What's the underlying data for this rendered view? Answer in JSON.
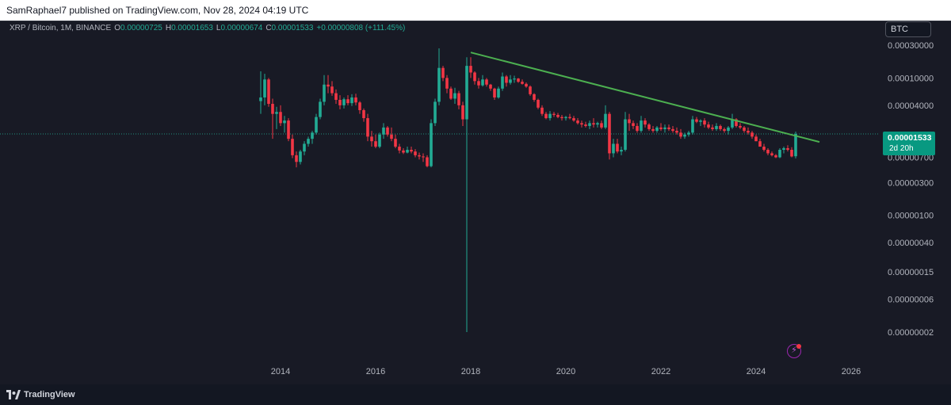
{
  "header": {
    "publish_text": "SamRaphael7 published on TradingView.com, Nov 28, 2024 04:19 UTC"
  },
  "legend": {
    "symbol": "XRP / Bitcoin, 1M, BINANCE",
    "open_label": "O",
    "open": "0.00000725",
    "high_label": "H",
    "high": "0.00001653",
    "low_label": "L",
    "low": "0.00000674",
    "close_label": "C",
    "close": "0.00001533",
    "change": "+0.00000808 (+111.45%)"
  },
  "currency_button": "BTC",
  "last_price": {
    "value": "0.00001533",
    "countdown": "2d 20h"
  },
  "footer": {
    "brand": "TradingView"
  },
  "colors": {
    "up": "#22ab94",
    "down": "#f23645",
    "trendline": "#4caf50",
    "background": "#181a25",
    "axis_text": "#b2b5be"
  },
  "icons": [
    "tradingview-logo-icon",
    "flash-icon"
  ],
  "chart_data": {
    "type": "candlestick",
    "interval": "1M",
    "y_scale": "log",
    "ylim": [
      1.5e-08,
      0.00035
    ],
    "xlim": [
      "2012-10-01",
      "2026-10-01"
    ],
    "y_ticks": [
      "0.00030000",
      "0.00010000",
      "0.00004000",
      "0.00001533",
      "0.00000700",
      "0.00000300",
      "0.00000100",
      "0.00000040",
      "0.00000015",
      "0.00000006",
      "0.00000002"
    ],
    "y_tick_values": [
      0.0003,
      0.0001,
      4e-05,
      1.533e-05,
      7e-06,
      3e-06,
      1e-06,
      4e-07,
      1.5e-07,
      6e-08,
      2e-08
    ],
    "x_ticks": [
      "2014",
      "2016",
      "2018",
      "2020",
      "2022",
      "2024",
      "2026"
    ],
    "grid": false,
    "current_price_line": 1.533e-05,
    "trendline": [
      {
        "date": "2018-01-01",
        "value": 0.000235
      },
      {
        "date": "2025-05-01",
        "value": 1.17e-05
      }
    ],
    "candles": [
      {
        "date": "2013-08",
        "o": 4.6e-05,
        "h": 0.000125,
        "l": 3e-05,
        "c": 5.2e-05
      },
      {
        "date": "2013-09",
        "o": 5.2e-05,
        "h": 0.000115,
        "l": 4e-05,
        "c": 9.5e-05
      },
      {
        "date": "2013-10",
        "o": 9.5e-05,
        "h": 0.0001,
        "l": 3.8e-05,
        "c": 4.2e-05
      },
      {
        "date": "2013-11",
        "o": 4.2e-05,
        "h": 5e-05,
        "l": 1.3e-05,
        "c": 3e-05
      },
      {
        "date": "2013-12",
        "o": 3e-05,
        "h": 3.8e-05,
        "l": 1.8e-05,
        "c": 3.2e-05
      },
      {
        "date": "2014-01",
        "o": 3.2e-05,
        "h": 4e-05,
        "l": 2e-05,
        "c": 2.2e-05
      },
      {
        "date": "2014-02",
        "o": 2.2e-05,
        "h": 2.8e-05,
        "l": 1.6e-05,
        "c": 2.4e-05
      },
      {
        "date": "2014-03",
        "o": 2.4e-05,
        "h": 2.6e-05,
        "l": 1.2e-05,
        "c": 1.3e-05
      },
      {
        "date": "2014-04",
        "o": 1.3e-05,
        "h": 1.5e-05,
        "l": 6.8e-06,
        "c": 7.5e-06
      },
      {
        "date": "2014-05",
        "o": 7.5e-06,
        "h": 8.5e-06,
        "l": 5e-06,
        "c": 6e-06
      },
      {
        "date": "2014-06",
        "o": 6e-06,
        "h": 9e-06,
        "l": 5.5e-06,
        "c": 8.5e-06
      },
      {
        "date": "2014-07",
        "o": 8.5e-06,
        "h": 1.2e-05,
        "l": 7.5e-06,
        "c": 1.1e-05
      },
      {
        "date": "2014-08",
        "o": 1.1e-05,
        "h": 1.4e-05,
        "l": 1e-05,
        "c": 1.3e-05
      },
      {
        "date": "2014-09",
        "o": 1.3e-05,
        "h": 1.7e-05,
        "l": 1.1e-05,
        "c": 1.6e-05
      },
      {
        "date": "2014-10",
        "o": 1.6e-05,
        "h": 3e-05,
        "l": 1.5e-05,
        "c": 2.7e-05
      },
      {
        "date": "2014-11",
        "o": 2.7e-05,
        "h": 5e-05,
        "l": 2.5e-05,
        "c": 4.5e-05
      },
      {
        "date": "2014-12",
        "o": 4.5e-05,
        "h": 0.00011,
        "l": 4e-05,
        "c": 8e-05
      },
      {
        "date": "2015-01",
        "o": 8e-05,
        "h": 0.00011,
        "l": 6e-05,
        "c": 7.5e-05
      },
      {
        "date": "2015-02",
        "o": 7.5e-05,
        "h": 9e-05,
        "l": 5.5e-05,
        "c": 6e-05
      },
      {
        "date": "2015-03",
        "o": 6e-05,
        "h": 6.8e-05,
        "l": 4.2e-05,
        "c": 4.8e-05
      },
      {
        "date": "2015-04",
        "o": 4.8e-05,
        "h": 5.6e-05,
        "l": 3.5e-05,
        "c": 4e-05
      },
      {
        "date": "2015-05",
        "o": 4e-05,
        "h": 5.2e-05,
        "l": 3.6e-05,
        "c": 4.9e-05
      },
      {
        "date": "2015-06",
        "o": 4.9e-05,
        "h": 5.6e-05,
        "l": 4e-05,
        "c": 4.3e-05
      },
      {
        "date": "2015-07",
        "o": 4.3e-05,
        "h": 5.8e-05,
        "l": 3.9e-05,
        "c": 5.2e-05
      },
      {
        "date": "2015-08",
        "o": 5.2e-05,
        "h": 5.9e-05,
        "l": 4e-05,
        "c": 4.4e-05
      },
      {
        "date": "2015-09",
        "o": 4.4e-05,
        "h": 4.6e-05,
        "l": 3e-05,
        "c": 3.4e-05
      },
      {
        "date": "2015-10",
        "o": 3.4e-05,
        "h": 3.6e-05,
        "l": 2.3e-05,
        "c": 2.6e-05
      },
      {
        "date": "2015-11",
        "o": 2.6e-05,
        "h": 3e-05,
        "l": 1.2e-05,
        "c": 1.4e-05
      },
      {
        "date": "2015-12",
        "o": 1.4e-05,
        "h": 1.7e-05,
        "l": 1e-05,
        "c": 1.2e-05
      },
      {
        "date": "2016-01",
        "o": 1.2e-05,
        "h": 1.5e-05,
        "l": 9.5e-06,
        "c": 1e-05
      },
      {
        "date": "2016-02",
        "o": 1e-05,
        "h": 1.6e-05,
        "l": 9.5e-06,
        "c": 1.5e-05
      },
      {
        "date": "2016-03",
        "o": 1.5e-05,
        "h": 2.2e-05,
        "l": 1.3e-05,
        "c": 1.9e-05
      },
      {
        "date": "2016-04",
        "o": 1.9e-05,
        "h": 2e-05,
        "l": 1.4e-05,
        "c": 1.5e-05
      },
      {
        "date": "2016-05",
        "o": 1.5e-05,
        "h": 1.9e-05,
        "l": 1.2e-05,
        "c": 1.3e-05
      },
      {
        "date": "2016-06",
        "o": 1.3e-05,
        "h": 1.5e-05,
        "l": 9.5e-06,
        "c": 1e-05
      },
      {
        "date": "2016-07",
        "o": 1e-05,
        "h": 1.1e-05,
        "l": 8e-06,
        "c": 8.8e-06
      },
      {
        "date": "2016-08",
        "o": 8.8e-06,
        "h": 9.5e-06,
        "l": 7.8e-06,
        "c": 8.2e-06
      },
      {
        "date": "2016-09",
        "o": 8.2e-06,
        "h": 1e-05,
        "l": 8e-06,
        "c": 9e-06
      },
      {
        "date": "2016-10",
        "o": 9e-06,
        "h": 1e-05,
        "l": 8e-06,
        "c": 8.5e-06
      },
      {
        "date": "2016-11",
        "o": 8.5e-06,
        "h": 9.2e-06,
        "l": 7e-06,
        "c": 7.5e-06
      },
      {
        "date": "2016-12",
        "o": 7.5e-06,
        "h": 8.2e-06,
        "l": 6.5e-06,
        "c": 7.2e-06
      },
      {
        "date": "2017-01",
        "o": 7.2e-06,
        "h": 8e-06,
        "l": 6e-06,
        "c": 7e-06
      },
      {
        "date": "2017-02",
        "o": 7e-06,
        "h": 7.5e-06,
        "l": 5e-06,
        "c": 5.2e-06
      },
      {
        "date": "2017-03",
        "o": 5.2e-06,
        "h": 2.5e-05,
        "l": 5e-06,
        "c": 2.2e-05
      },
      {
        "date": "2017-04",
        "o": 2.2e-05,
        "h": 5e-05,
        "l": 2e-05,
        "c": 4.5e-05
      },
      {
        "date": "2017-05",
        "o": 4.5e-05,
        "h": 0.00027,
        "l": 4e-05,
        "c": 0.00014
      },
      {
        "date": "2017-06",
        "o": 0.00014,
        "h": 0.00015,
        "l": 9e-05,
        "c": 0.0001
      },
      {
        "date": "2017-07",
        "o": 0.0001,
        "h": 0.00011,
        "l": 6e-05,
        "c": 7e-05
      },
      {
        "date": "2017-08",
        "o": 7e-05,
        "h": 7.5e-05,
        "l": 4.8e-05,
        "c": 5e-05
      },
      {
        "date": "2017-09",
        "o": 5e-05,
        "h": 7.2e-05,
        "l": 4.2e-05,
        "c": 6e-05
      },
      {
        "date": "2017-10",
        "o": 6e-05,
        "h": 6.5e-05,
        "l": 3.5e-05,
        "c": 4e-05
      },
      {
        "date": "2017-11",
        "o": 4e-05,
        "h": 4.5e-05,
        "l": 2e-05,
        "c": 2.5e-05
      },
      {
        "date": "2017-12",
        "o": 2.5e-05,
        "h": 0.0002,
        "l": 2e-08,
        "c": 0.00015
      },
      {
        "date": "2018-01",
        "o": 0.00015,
        "h": 0.0002,
        "l": 0.0001,
        "c": 0.00012
      },
      {
        "date": "2018-02",
        "o": 0.00012,
        "h": 0.000125,
        "l": 8e-05,
        "c": 9e-05
      },
      {
        "date": "2018-03",
        "o": 9e-05,
        "h": 0.0001,
        "l": 7e-05,
        "c": 7.8e-05
      },
      {
        "date": "2018-04",
        "o": 7.8e-05,
        "h": 0.00011,
        "l": 7.5e-05,
        "c": 9.5e-05
      },
      {
        "date": "2018-05",
        "o": 9.5e-05,
        "h": 0.0001,
        "l": 7.5e-05,
        "c": 8e-05
      },
      {
        "date": "2018-06",
        "o": 8e-05,
        "h": 8.2e-05,
        "l": 6.5e-05,
        "c": 7e-05
      },
      {
        "date": "2018-07",
        "o": 7e-05,
        "h": 7.2e-05,
        "l": 4.8e-05,
        "c": 5.2e-05
      },
      {
        "date": "2018-08",
        "o": 5.2e-05,
        "h": 7.5e-05,
        "l": 5e-05,
        "c": 7e-05
      },
      {
        "date": "2018-09",
        "o": 7e-05,
        "h": 0.00012,
        "l": 6.5e-05,
        "c": 0.000105
      },
      {
        "date": "2018-10",
        "o": 0.000105,
        "h": 0.00011,
        "l": 7.5e-05,
        "c": 8.5e-05
      },
      {
        "date": "2018-11",
        "o": 8.5e-05,
        "h": 0.00011,
        "l": 8e-05,
        "c": 9.5e-05
      },
      {
        "date": "2018-12",
        "o": 9.5e-05,
        "h": 0.000108,
        "l": 8.5e-05,
        "c": 9.8e-05
      },
      {
        "date": "2019-01",
        "o": 9.8e-05,
        "h": 0.0001,
        "l": 8.5e-05,
        "c": 8.8e-05
      },
      {
        "date": "2019-02",
        "o": 8.8e-05,
        "h": 9.5e-05,
        "l": 8e-05,
        "c": 8.2e-05
      },
      {
        "date": "2019-03",
        "o": 8.2e-05,
        "h": 8.6e-05,
        "l": 7.2e-05,
        "c": 7.5e-05
      },
      {
        "date": "2019-04",
        "o": 7.5e-05,
        "h": 7.8e-05,
        "l": 5.5e-05,
        "c": 5.8e-05
      },
      {
        "date": "2019-05",
        "o": 5.8e-05,
        "h": 6e-05,
        "l": 4.5e-05,
        "c": 4.8e-05
      },
      {
        "date": "2019-06",
        "o": 4.8e-05,
        "h": 5e-05,
        "l": 3.5e-05,
        "c": 3.7e-05
      },
      {
        "date": "2019-07",
        "o": 3.7e-05,
        "h": 4e-05,
        "l": 2.8e-05,
        "c": 3e-05
      },
      {
        "date": "2019-08",
        "o": 3e-05,
        "h": 3.2e-05,
        "l": 2.5e-05,
        "c": 2.6e-05
      },
      {
        "date": "2019-09",
        "o": 2.6e-05,
        "h": 3.3e-05,
        "l": 2.4e-05,
        "c": 3e-05
      },
      {
        "date": "2019-10",
        "o": 3e-05,
        "h": 3.2e-05,
        "l": 2.7e-05,
        "c": 2.9e-05
      },
      {
        "date": "2019-11",
        "o": 2.9e-05,
        "h": 3.1e-05,
        "l": 2.6e-05,
        "c": 2.7e-05
      },
      {
        "date": "2019-12",
        "o": 2.7e-05,
        "h": 2.9e-05,
        "l": 2.4e-05,
        "c": 2.6e-05
      },
      {
        "date": "2020-01",
        "o": 2.6e-05,
        "h": 2.8e-05,
        "l": 2.4e-05,
        "c": 2.7e-05
      },
      {
        "date": "2020-02",
        "o": 2.7e-05,
        "h": 3e-05,
        "l": 2.5e-05,
        "c": 2.6e-05
      },
      {
        "date": "2020-03",
        "o": 2.6e-05,
        "h": 2.8e-05,
        "l": 2.3e-05,
        "c": 2.4e-05
      },
      {
        "date": "2020-04",
        "o": 2.4e-05,
        "h": 2.6e-05,
        "l": 2.1e-05,
        "c": 2.2e-05
      },
      {
        "date": "2020-05",
        "o": 2.2e-05,
        "h": 2.4e-05,
        "l": 1.9e-05,
        "c": 2.1e-05
      },
      {
        "date": "2020-06",
        "o": 2.1e-05,
        "h": 2.3e-05,
        "l": 1.9e-05,
        "c": 2e-05
      },
      {
        "date": "2020-07",
        "o": 2e-05,
        "h": 2.4e-05,
        "l": 1.8e-05,
        "c": 2.2e-05
      },
      {
        "date": "2020-08",
        "o": 2.2e-05,
        "h": 2.6e-05,
        "l": 1.9e-05,
        "c": 2.1e-05
      },
      {
        "date": "2020-09",
        "o": 2.1e-05,
        "h": 2.3e-05,
        "l": 1.9e-05,
        "c": 2.2e-05
      },
      {
        "date": "2020-10",
        "o": 2.2e-05,
        "h": 2.4e-05,
        "l": 1.8e-05,
        "c": 1.9e-05
      },
      {
        "date": "2020-11",
        "o": 1.9e-05,
        "h": 4e-05,
        "l": 1.8e-05,
        "c": 3e-05
      },
      {
        "date": "2020-12",
        "o": 3e-05,
        "h": 3.2e-05,
        "l": 6.5e-06,
        "c": 8e-06
      },
      {
        "date": "2021-01",
        "o": 8e-06,
        "h": 1.3e-05,
        "l": 7e-06,
        "c": 1.1e-05
      },
      {
        "date": "2021-02",
        "o": 1.1e-05,
        "h": 1.3e-05,
        "l": 8e-06,
        "c": 8.5e-06
      },
      {
        "date": "2021-03",
        "o": 8.5e-06,
        "h": 1e-05,
        "l": 7.5e-06,
        "c": 9e-06
      },
      {
        "date": "2021-04",
        "o": 9e-06,
        "h": 3.2e-05,
        "l": 8.5e-06,
        "c": 2.5e-05
      },
      {
        "date": "2021-05",
        "o": 2.5e-05,
        "h": 3e-05,
        "l": 1.7e-05,
        "c": 2.2e-05
      },
      {
        "date": "2021-06",
        "o": 2.2e-05,
        "h": 2.4e-05,
        "l": 1.8e-05,
        "c": 2e-05
      },
      {
        "date": "2021-07",
        "o": 2e-05,
        "h": 2.2e-05,
        "l": 1.6e-05,
        "c": 1.7e-05
      },
      {
        "date": "2021-08",
        "o": 1.7e-05,
        "h": 2.8e-05,
        "l": 1.6e-05,
        "c": 2.4e-05
      },
      {
        "date": "2021-09",
        "o": 2.4e-05,
        "h": 2.6e-05,
        "l": 1.9e-05,
        "c": 2.1e-05
      },
      {
        "date": "2021-10",
        "o": 2.1e-05,
        "h": 2.2e-05,
        "l": 1.7e-05,
        "c": 1.8e-05
      },
      {
        "date": "2021-11",
        "o": 1.8e-05,
        "h": 2e-05,
        "l": 1.6e-05,
        "c": 1.7e-05
      },
      {
        "date": "2021-12",
        "o": 1.7e-05,
        "h": 2e-05,
        "l": 1.6e-05,
        "c": 1.9e-05
      },
      {
        "date": "2022-01",
        "o": 1.9e-05,
        "h": 2.2e-05,
        "l": 1.7e-05,
        "c": 1.8e-05
      },
      {
        "date": "2022-02",
        "o": 1.8e-05,
        "h": 2.1e-05,
        "l": 1.6e-05,
        "c": 1.9e-05
      },
      {
        "date": "2022-03",
        "o": 1.9e-05,
        "h": 2.1e-05,
        "l": 1.7e-05,
        "c": 1.8e-05
      },
      {
        "date": "2022-04",
        "o": 1.8e-05,
        "h": 2e-05,
        "l": 1.6e-05,
        "c": 1.7e-05
      },
      {
        "date": "2022-05",
        "o": 1.7e-05,
        "h": 1.9e-05,
        "l": 1.5e-05,
        "c": 1.6e-05
      },
      {
        "date": "2022-06",
        "o": 1.6e-05,
        "h": 1.8e-05,
        "l": 1.3e-05,
        "c": 1.4e-05
      },
      {
        "date": "2022-07",
        "o": 1.4e-05,
        "h": 1.6e-05,
        "l": 1.3e-05,
        "c": 1.5e-05
      },
      {
        "date": "2022-08",
        "o": 1.5e-05,
        "h": 1.7e-05,
        "l": 1.4e-05,
        "c": 1.6e-05
      },
      {
        "date": "2022-09",
        "o": 1.6e-05,
        "h": 2.8e-05,
        "l": 1.5e-05,
        "c": 2.5e-05
      },
      {
        "date": "2022-10",
        "o": 2.5e-05,
        "h": 2.7e-05,
        "l": 2.2e-05,
        "c": 2.3e-05
      },
      {
        "date": "2022-11",
        "o": 2.3e-05,
        "h": 2.5e-05,
        "l": 2e-05,
        "c": 2.4e-05
      },
      {
        "date": "2022-12",
        "o": 2.4e-05,
        "h": 2.6e-05,
        "l": 1.9e-05,
        "c": 2.1e-05
      },
      {
        "date": "2023-01",
        "o": 2.1e-05,
        "h": 2.3e-05,
        "l": 1.8e-05,
        "c": 1.9e-05
      },
      {
        "date": "2023-02",
        "o": 1.9e-05,
        "h": 2.1e-05,
        "l": 1.7e-05,
        "c": 1.8e-05
      },
      {
        "date": "2023-03",
        "o": 1.8e-05,
        "h": 2.2e-05,
        "l": 1.7e-05,
        "c": 2e-05
      },
      {
        "date": "2023-04",
        "o": 2e-05,
        "h": 2.1e-05,
        "l": 1.7e-05,
        "c": 1.8e-05
      },
      {
        "date": "2023-05",
        "o": 1.8e-05,
        "h": 1.9e-05,
        "l": 1.6e-05,
        "c": 1.7e-05
      },
      {
        "date": "2023-06",
        "o": 1.7e-05,
        "h": 2e-05,
        "l": 1.5e-05,
        "c": 1.9e-05
      },
      {
        "date": "2023-07",
        "o": 1.9e-05,
        "h": 3e-05,
        "l": 1.8e-05,
        "c": 2.5e-05
      },
      {
        "date": "2023-08",
        "o": 2.5e-05,
        "h": 2.6e-05,
        "l": 1.9e-05,
        "c": 2e-05
      },
      {
        "date": "2023-09",
        "o": 2e-05,
        "h": 2.2e-05,
        "l": 1.8e-05,
        "c": 1.9e-05
      },
      {
        "date": "2023-10",
        "o": 1.9e-05,
        "h": 2e-05,
        "l": 1.6e-05,
        "c": 1.7e-05
      },
      {
        "date": "2023-11",
        "o": 1.7e-05,
        "h": 1.9e-05,
        "l": 1.5e-05,
        "c": 1.6e-05
      },
      {
        "date": "2023-12",
        "o": 1.6e-05,
        "h": 1.7e-05,
        "l": 1.3e-05,
        "c": 1.4e-05
      },
      {
        "date": "2024-01",
        "o": 1.4e-05,
        "h": 1.5e-05,
        "l": 1.2e-05,
        "c": 1.2e-05
      },
      {
        "date": "2024-02",
        "o": 1.2e-05,
        "h": 1.3e-05,
        "l": 1e-05,
        "c": 1e-05
      },
      {
        "date": "2024-03",
        "o": 1e-05,
        "h": 1.1e-05,
        "l": 8.5e-06,
        "c": 9e-06
      },
      {
        "date": "2024-04",
        "o": 9e-06,
        "h": 9.5e-06,
        "l": 7.5e-06,
        "c": 8e-06
      },
      {
        "date": "2024-05",
        "o": 8e-06,
        "h": 8.5e-06,
        "l": 7.2e-06,
        "c": 7.5e-06
      },
      {
        "date": "2024-06",
        "o": 7.5e-06,
        "h": 7.8e-06,
        "l": 6.8e-06,
        "c": 7e-06
      },
      {
        "date": "2024-07",
        "o": 7e-06,
        "h": 9.5e-06,
        "l": 6.8e-06,
        "c": 9e-06
      },
      {
        "date": "2024-08",
        "o": 9e-06,
        "h": 1e-05,
        "l": 8e-06,
        "c": 9.5e-06
      },
      {
        "date": "2024-09",
        "o": 9.5e-06,
        "h": 1.05e-05,
        "l": 8.5e-06,
        "c": 9e-06
      },
      {
        "date": "2024-10",
        "o": 9e-06,
        "h": 9.8e-06,
        "l": 7e-06,
        "c": 7.2e-06
      },
      {
        "date": "2024-11",
        "o": 7.25e-06,
        "h": 1.653e-05,
        "l": 6.74e-06,
        "c": 1.533e-05
      }
    ]
  }
}
